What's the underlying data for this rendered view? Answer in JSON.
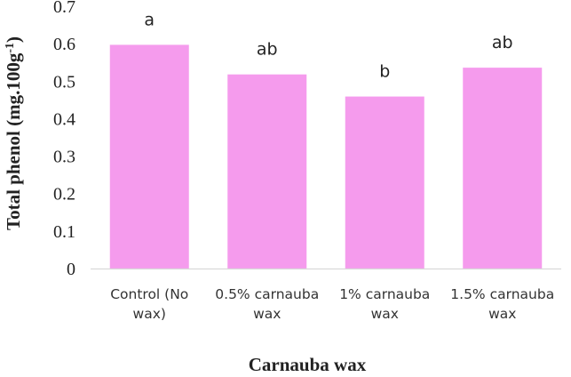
{
  "chart_data": {
    "type": "bar",
    "categories": [
      [
        "Control (No",
        "wax)"
      ],
      [
        "0.5% carnauba",
        "wax"
      ],
      [
        "1% carnauba",
        "wax"
      ],
      [
        "1.5% carnauba",
        "wax"
      ]
    ],
    "values": [
      0.597,
      0.518,
      0.459,
      0.536
    ],
    "data_labels": [
      "a",
      "ab",
      "b",
      "ab"
    ],
    "xlabel": "Carnauba wax",
    "ylabel": {
      "main": "Total phenol (mg.100g",
      "superscript": "-1",
      "close": ")"
    },
    "ylim": [
      0,
      0.7
    ],
    "yticks": [
      "0",
      "0.1",
      "0.2",
      "0.3",
      "0.4",
      "0.5",
      "0.6",
      "0.7"
    ],
    "grid": false,
    "legend": "none",
    "bar_color": "#f59bed",
    "axis_color": "#d9d9d9"
  }
}
